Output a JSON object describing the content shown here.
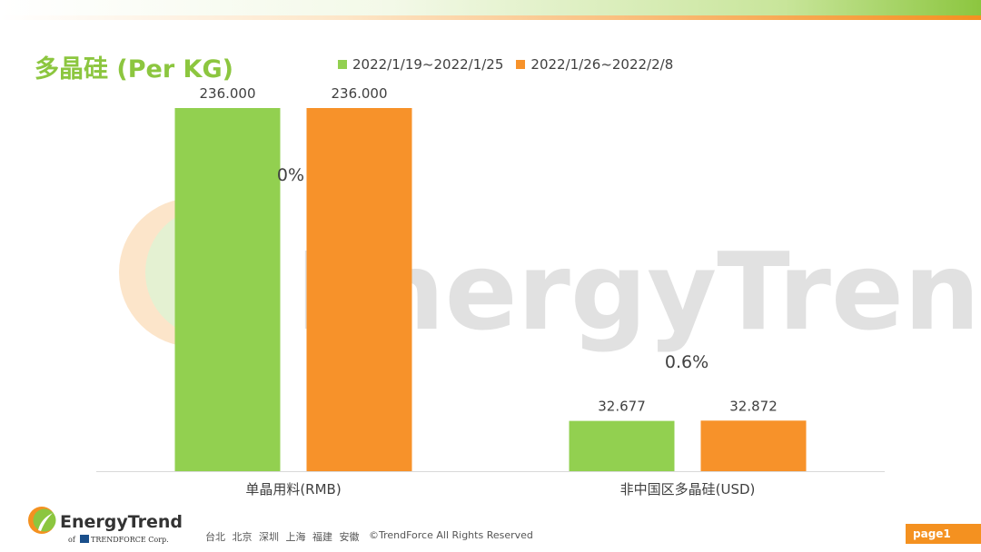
{
  "header": {
    "title": "多晶硅 (Per KG)"
  },
  "watermark": {
    "text": "EnergyTrend",
    "icon": "leaf-icon"
  },
  "chart_data": {
    "type": "bar",
    "title": "多晶硅 (Per KG)",
    "categories": [
      "单晶用料(RMB)",
      "非中国区多晶硅(USD)"
    ],
    "series": [
      {
        "name": "2022/1/19~2022/1/25",
        "color": "#92d050",
        "values": [
          236.0,
          32.677
        ],
        "labels": [
          "236.000",
          "32.677"
        ]
      },
      {
        "name": "2022/1/26~2022/2/8",
        "color": "#f7922a",
        "values": [
          236.0,
          32.872
        ],
        "labels": [
          "236.000",
          "32.872"
        ]
      }
    ],
    "annotations": [
      "0%",
      "0.6%"
    ],
    "ylim": [
      0,
      236
    ],
    "xlabel": "",
    "ylabel": "",
    "grid": false,
    "legend": "top"
  },
  "footer": {
    "logo_text": "EnergyTrend",
    "logo_sub_of": "of",
    "logo_sub_corp": "TRENDFORCE Corp.",
    "cities": "台北 北京 深圳 上海 福建 安徽",
    "copyright": "©TrendForce All Rights Reserved",
    "page": "page1"
  },
  "colors": {
    "brand_green": "#8cc63f",
    "brand_orange": "#f49120"
  }
}
